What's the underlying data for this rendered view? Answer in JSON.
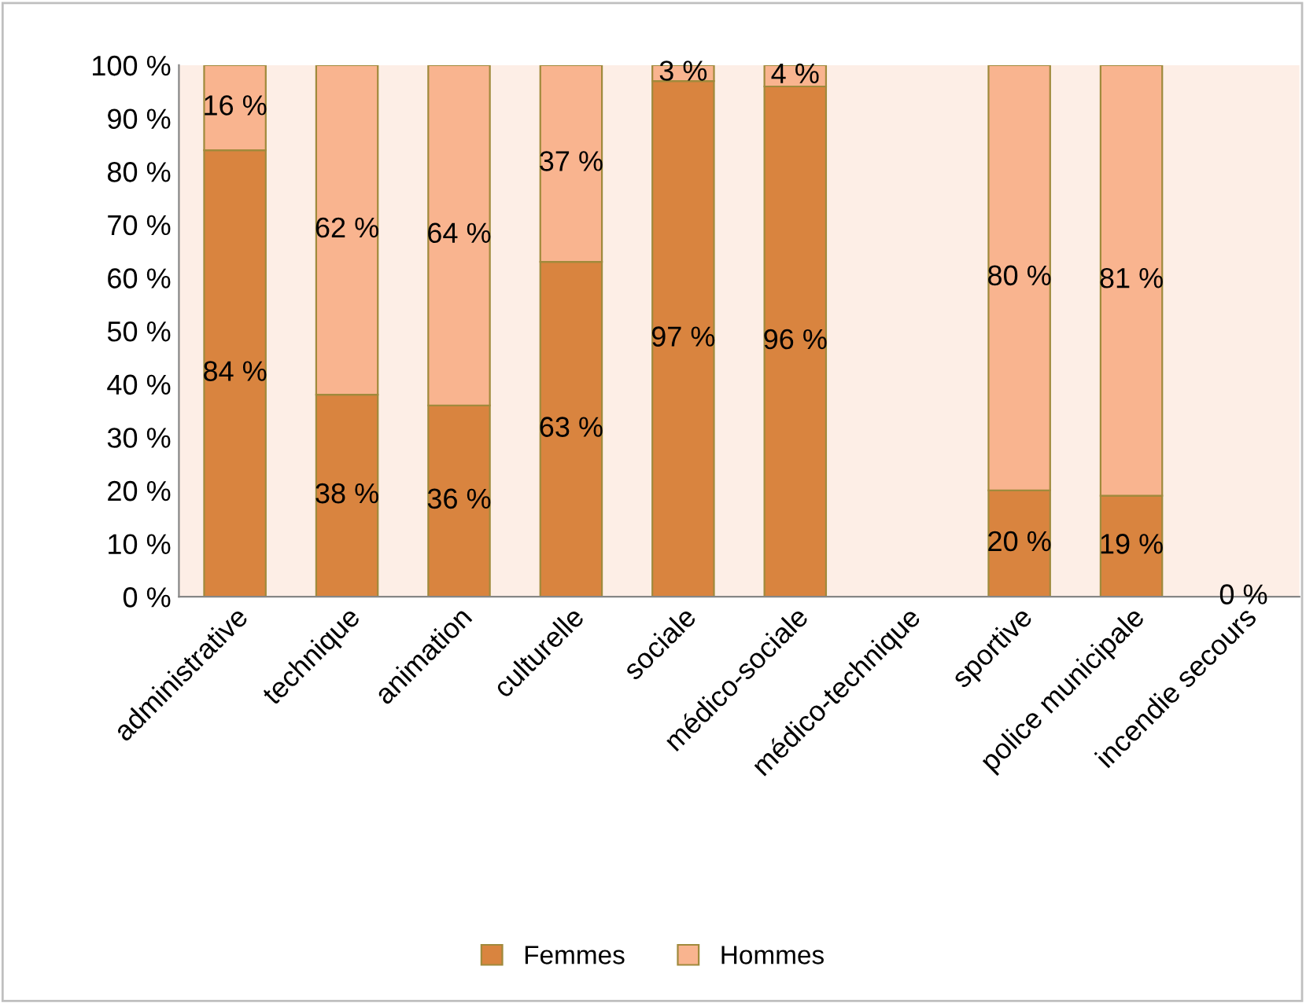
{
  "chart_data": {
    "type": "bar",
    "stacked": true,
    "categories": [
      "administrative",
      "technique",
      "animation",
      "culturelle",
      "sociale",
      "médico-sociale",
      "médico-technique",
      "sportive",
      "police municipale",
      "incendie secours"
    ],
    "series": [
      {
        "name": "Femmes",
        "color": "#d9843f",
        "values": [
          84,
          38,
          36,
          63,
          97,
          96,
          null,
          20,
          19,
          0
        ],
        "value_labels": [
          "84 %",
          "38 %",
          "36 %",
          "63 %",
          "97 %",
          "96 %",
          null,
          "20 %",
          "19 %",
          "0 %"
        ]
      },
      {
        "name": "Hommes",
        "color": "#f9b48f",
        "values": [
          16,
          62,
          64,
          37,
          3,
          4,
          null,
          80,
          81,
          0
        ],
        "value_labels": [
          "16 %",
          "62 %",
          "64 %",
          "37 %",
          "3 %",
          "4 %",
          null,
          "80 %",
          "81 %",
          null
        ]
      }
    ],
    "ylim": [
      0,
      100
    ],
    "yticks": [
      {
        "value": 0,
        "label": "0 %"
      },
      {
        "value": 10,
        "label": "10 %"
      },
      {
        "value": 20,
        "label": "20 %"
      },
      {
        "value": 30,
        "label": "30 %"
      },
      {
        "value": 40,
        "label": "40 %"
      },
      {
        "value": 50,
        "label": "50 %"
      },
      {
        "value": 60,
        "label": "60 %"
      },
      {
        "value": 70,
        "label": "70 %"
      },
      {
        "value": 80,
        "label": "80 %"
      },
      {
        "value": 90,
        "label": "90 %"
      },
      {
        "value": 100,
        "label": "100 %"
      }
    ],
    "grid": false,
    "legend": "bottom"
  }
}
